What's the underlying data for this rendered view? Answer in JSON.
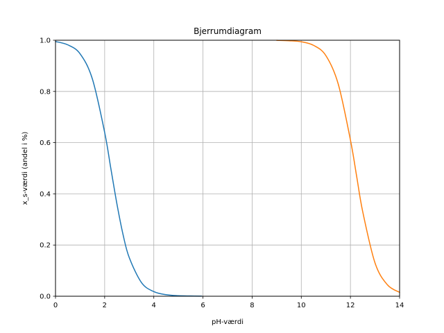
{
  "chart_data": {
    "type": "line",
    "title": "Bjerrumdiagram",
    "xlabel": "pH-værdi",
    "ylabel": "x_s-værdi (andel i %)",
    "xlim": [
      0,
      14
    ],
    "ylim": [
      0,
      1.0
    ],
    "grid": true,
    "x_ticks": [
      "0",
      "2",
      "4",
      "6",
      "8",
      "10",
      "12",
      "14"
    ],
    "y_ticks": [
      "0.0",
      "0.2",
      "0.4",
      "0.6",
      "0.8",
      "1.0"
    ],
    "series": [
      {
        "color": "#1f77b4",
        "x": [
          0,
          0.5,
          1.0,
          1.5,
          2.0,
          2.25,
          2.5,
          2.75,
          3.0,
          3.5,
          4.0,
          4.5,
          5.0,
          5.5,
          5.95
        ],
        "y": [
          0.995,
          0.982,
          0.947,
          0.849,
          0.64,
          0.5,
          0.36,
          0.24,
          0.151,
          0.053,
          0.018,
          0.006,
          0.002,
          0.001,
          0.0003
        ]
      },
      {
        "color": "#ff7f0e",
        "x": [
          9.0,
          9.5,
          10.0,
          10.5,
          11.0,
          11.5,
          12.0,
          12.25,
          12.5,
          13.0,
          13.5,
          14.0
        ],
        "y": [
          0.9995,
          0.998,
          0.994,
          0.98,
          0.94,
          0.83,
          0.61,
          0.47,
          0.33,
          0.13,
          0.045,
          0.015
        ]
      }
    ]
  }
}
